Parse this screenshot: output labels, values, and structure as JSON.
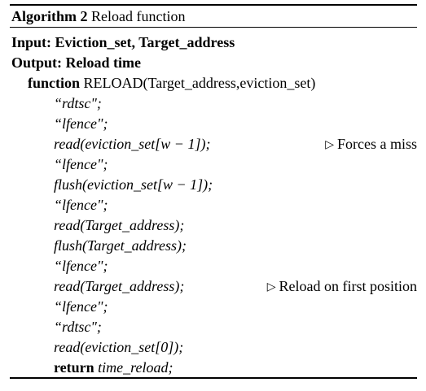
{
  "algorithm": {
    "label": "Algorithm 2",
    "title": "Reload function",
    "input_label": "Input:",
    "input_value": "Eviction_set, Target_address",
    "output_label": "Output:",
    "output_value": "Reload time",
    "function_keyword": "function",
    "function_signature": "RELOAD(Target_address,eviction_set)",
    "return_keyword": "return",
    "return_value": "time_reload;",
    "lines": [
      "“rdtsc\";",
      "“lfence\";",
      "read(eviction_set[w − 1]);",
      "“lfence\";",
      "flush(eviction_set[w − 1]);",
      "“lfence\";",
      "read(Target_address);",
      "flush(Target_address);",
      "“lfence\";",
      "read(Target_address);",
      "“lfence\";",
      "“rdtsc\";",
      "read(eviction_set[0]);"
    ],
    "comments": {
      "forces_miss": "Forces a miss",
      "reload_first": "Reload on first position"
    },
    "comment_marker": "▷"
  }
}
